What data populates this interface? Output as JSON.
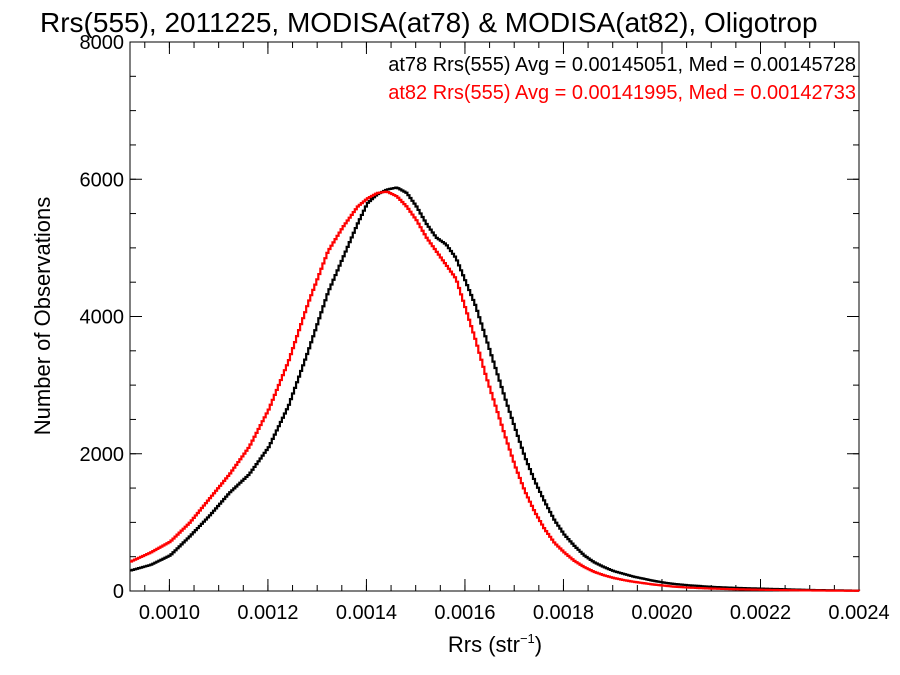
{
  "chart_data": {
    "type": "line",
    "title": "Rrs(555), 2011225, MODISA(at78) & MODISA(at82), Oligotrop",
    "xlabel_main": "Rrs (str",
    "xlabel_sup": "−1",
    "xlabel_close": ")",
    "ylabel": "Number of Observations",
    "xlim": [
      0.00092,
      0.0024
    ],
    "ylim": [
      0,
      8000
    ],
    "xticks": [
      0.001,
      0.0012,
      0.0014,
      0.0016,
      0.0018,
      0.002,
      0.0022,
      0.0024
    ],
    "xtick_labels": [
      "0.0010",
      "0.0012",
      "0.0014",
      "0.0016",
      "0.0018",
      "0.0020",
      "0.0022",
      "0.0024"
    ],
    "yticks": [
      0,
      2000,
      4000,
      6000,
      8000
    ],
    "ytick_labels": [
      "0",
      "2000",
      "4000",
      "6000",
      "8000"
    ],
    "series": [
      {
        "name": "at78",
        "color": "#000000",
        "x": [
          0.00092,
          0.00096,
          0.001,
          0.00104,
          0.00108,
          0.00112,
          0.00116,
          0.0012,
          0.00124,
          0.00128,
          0.00132,
          0.00135,
          0.00138,
          0.0014,
          0.00142,
          0.00144,
          0.00146,
          0.00148,
          0.0015,
          0.00152,
          0.00154,
          0.00156,
          0.00158,
          0.0016,
          0.00162,
          0.00164,
          0.00166,
          0.00168,
          0.0017,
          0.00172,
          0.00174,
          0.00176,
          0.00178,
          0.0018,
          0.00182,
          0.00184,
          0.00186,
          0.00188,
          0.0019,
          0.00192,
          0.00194,
          0.00196,
          0.00198,
          0.002,
          0.00202,
          0.00205,
          0.0021,
          0.00215,
          0.0022,
          0.00225,
          0.0023,
          0.00235,
          0.0024
        ],
        "y": [
          300,
          380,
          520,
          800,
          1100,
          1430,
          1700,
          2100,
          2700,
          3500,
          4350,
          4850,
          5350,
          5650,
          5780,
          5850,
          5880,
          5800,
          5600,
          5350,
          5150,
          5050,
          4850,
          4500,
          4150,
          3700,
          3250,
          2800,
          2370,
          1950,
          1600,
          1300,
          1030,
          820,
          660,
          520,
          420,
          350,
          290,
          250,
          210,
          180,
          150,
          125,
          105,
          85,
          60,
          45,
          35,
          25,
          15,
          10,
          5
        ]
      },
      {
        "name": "at82",
        "color": "#ff0000",
        "x": [
          0.00092,
          0.00096,
          0.001,
          0.00104,
          0.00108,
          0.00112,
          0.00116,
          0.0012,
          0.00124,
          0.00128,
          0.00132,
          0.00135,
          0.00138,
          0.0014,
          0.00142,
          0.00144,
          0.00146,
          0.00148,
          0.0015,
          0.00152,
          0.00154,
          0.00156,
          0.00158,
          0.0016,
          0.00162,
          0.00164,
          0.00166,
          0.00168,
          0.0017,
          0.00172,
          0.00174,
          0.00176,
          0.00178,
          0.0018,
          0.00182,
          0.00184,
          0.00186,
          0.00188,
          0.0019,
          0.00192,
          0.00194,
          0.00196,
          0.00198,
          0.002,
          0.00202,
          0.00205,
          0.0021,
          0.00215,
          0.0022,
          0.00225,
          0.0023,
          0.00235,
          0.0024
        ],
        "y": [
          430,
          560,
          720,
          1000,
          1350,
          1700,
          2100,
          2650,
          3350,
          4200,
          4950,
          5300,
          5600,
          5720,
          5800,
          5820,
          5750,
          5600,
          5400,
          5150,
          4950,
          4750,
          4550,
          4100,
          3650,
          3150,
          2700,
          2250,
          1820,
          1450,
          1150,
          900,
          700,
          560,
          440,
          350,
          280,
          230,
          190,
          160,
          135,
          115,
          95,
          80,
          65,
          50,
          35,
          25,
          18,
          12,
          8,
          5,
          3
        ]
      }
    ],
    "legend": [
      {
        "text": "at78 Rrs(555) Avg = 0.00145051, Med = 0.00145728",
        "color": "#000000"
      },
      {
        "text": "at82 Rrs(555) Avg = 0.00141995, Med = 0.00142733",
        "color": "#ff0000"
      }
    ],
    "legend_placement": "top-right",
    "grid": false
  }
}
